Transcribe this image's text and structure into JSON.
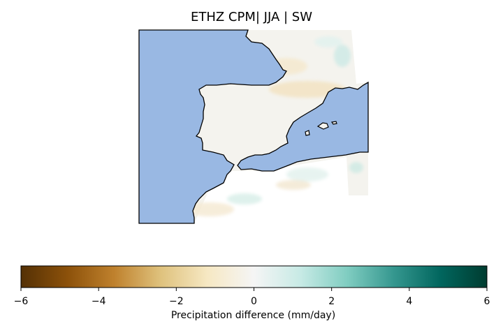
{
  "title": "ETHZ CPM| JJA | SW",
  "colors": {
    "sea": "#99b8e3",
    "land_base": "#f4f3ee",
    "coastline": "#000000"
  },
  "colorbar": {
    "label": "Precipitation difference (mm/day)",
    "range": [
      -6,
      6
    ],
    "ticks": [
      "−6",
      "−4",
      "−2",
      "0",
      "2",
      "4",
      "6"
    ],
    "colormap": "BrBG",
    "stops": [
      "#543005",
      "#8c510a",
      "#bf812d",
      "#dfc27d",
      "#f6e8c3",
      "#f5f5f5",
      "#c7eae5",
      "#80cdc1",
      "#35978f",
      "#01665e",
      "#003c30"
    ]
  }
}
